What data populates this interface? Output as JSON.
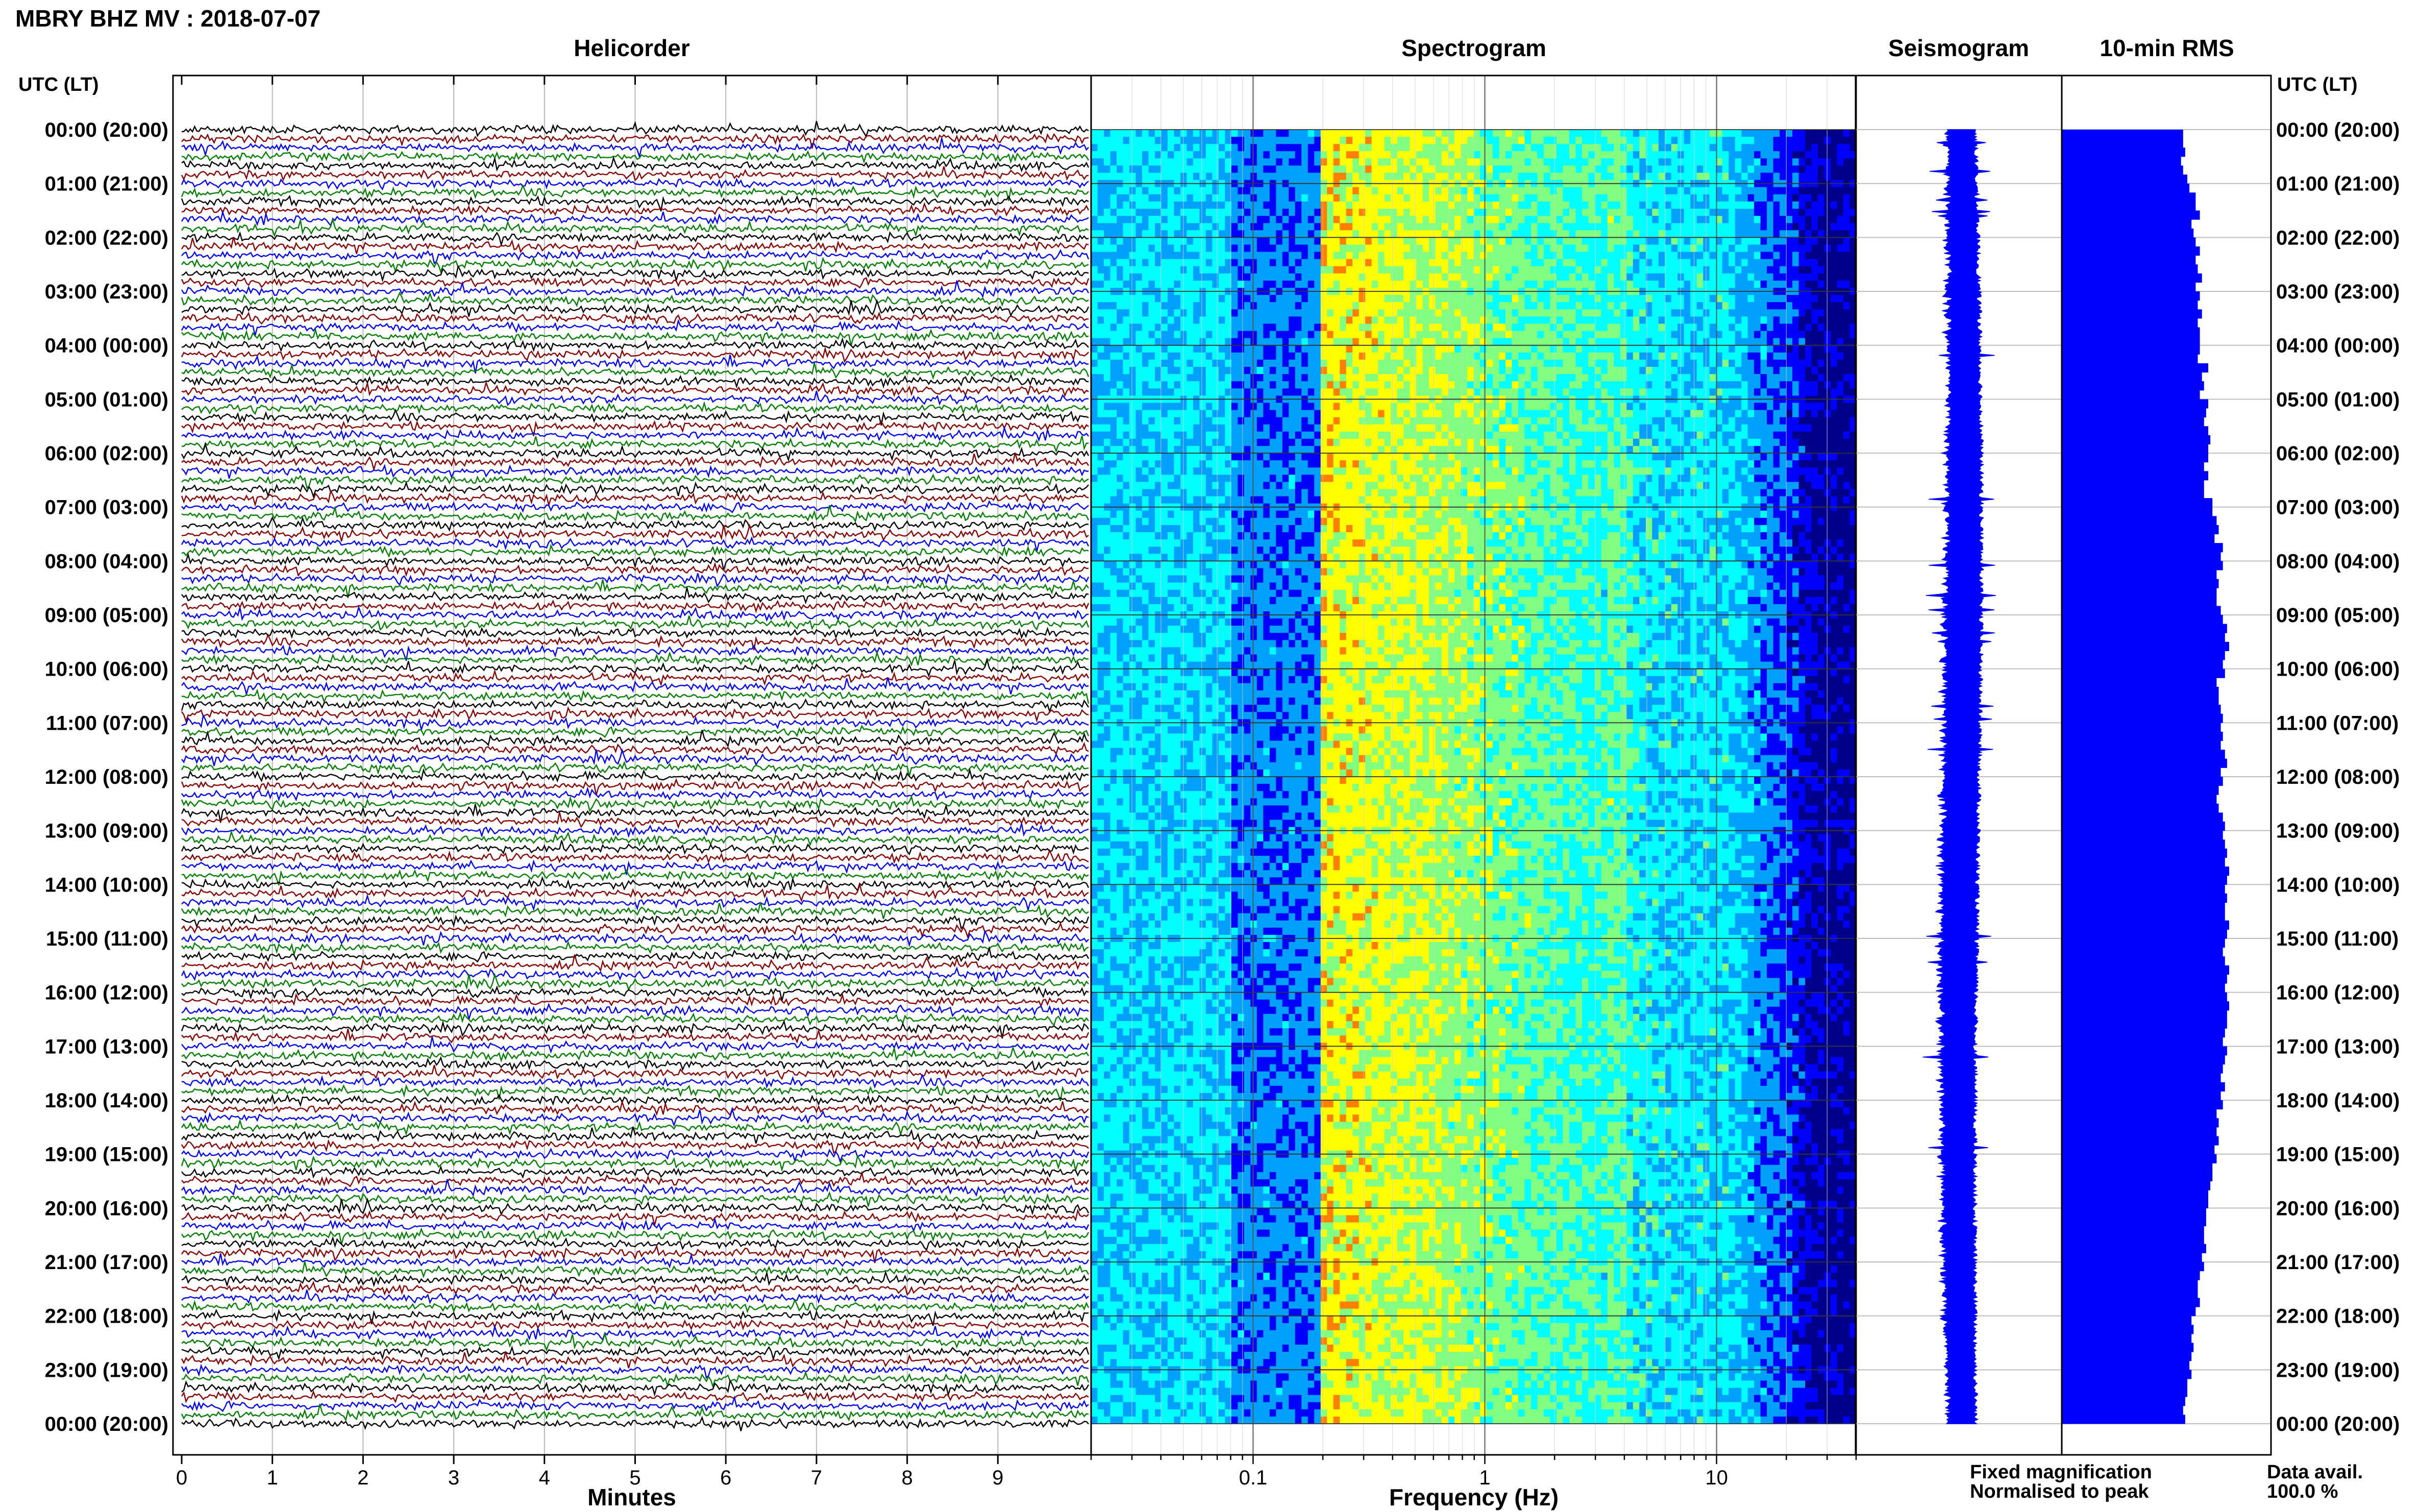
{
  "header": {
    "station_title": "MBRY BHZ MV : 2018-07-07",
    "utc_left": "UTC (LT)",
    "utc_right": "UTC (LT)"
  },
  "panels": {
    "helicorder": "Helicorder",
    "spectrogram": "Spectrogram",
    "seismogram": "Seismogram",
    "rms": "10-min RMS"
  },
  "chart_data": {
    "type": "helicorder",
    "time_labels": [
      "00:00 (20:00)",
      "01:00 (21:00)",
      "02:00 (22:00)",
      "03:00 (23:00)",
      "04:00 (00:00)",
      "05:00 (01:00)",
      "06:00 (02:00)",
      "07:00 (03:00)",
      "08:00 (04:00)",
      "09:00 (05:00)",
      "10:00 (06:00)",
      "11:00 (07:00)",
      "12:00 (08:00)",
      "13:00 (09:00)",
      "14:00 (10:00)",
      "15:00 (11:00)",
      "16:00 (12:00)",
      "17:00 (13:00)",
      "18:00 (14:00)",
      "19:00 (15:00)",
      "20:00 (16:00)",
      "21:00 (17:00)",
      "22:00 (18:00)",
      "23:00 (19:00)",
      "00:00 (20:00)"
    ],
    "helicorder": {
      "xlabel": "Minutes",
      "xticks": [
        0,
        1,
        2,
        3,
        4,
        5,
        6,
        7,
        8,
        9
      ],
      "xlim": [
        0,
        10
      ],
      "traces_per_hour": 6,
      "trace_colors": [
        "#000000",
        "#8b0000",
        "#0000ff",
        "#008000"
      ]
    },
    "spectrogram": {
      "xlabel": "Frequency (Hz)",
      "xscale": "log",
      "xlim": [
        0.02,
        40
      ],
      "xticks": [
        {
          "v": 0.1,
          "label": "0.1"
        },
        {
          "v": 1,
          "label": "1"
        },
        {
          "v": 10,
          "label": "10"
        }
      ],
      "colormap": [
        "#00008b",
        "#0000ff",
        "#00a0ff",
        "#00ffff",
        "#80ff80",
        "#ffff00",
        "#ff8000",
        "#ff0000"
      ]
    },
    "seismogram": {
      "color": "#0000ff"
    },
    "rms": {
      "color": "#0000ff",
      "xlim": [
        0,
        1
      ],
      "values": [
        0.58,
        0.58,
        0.59,
        0.57,
        0.58,
        0.6,
        0.61,
        0.64,
        0.64,
        0.66,
        0.62,
        0.63,
        0.64,
        0.66,
        0.64,
        0.65,
        0.67,
        0.64,
        0.66,
        0.65,
        0.67,
        0.65,
        0.66,
        0.66,
        0.66,
        0.65,
        0.7,
        0.67,
        0.68,
        0.66,
        0.7,
        0.69,
        0.68,
        0.7,
        0.71,
        0.7,
        0.7,
        0.68,
        0.7,
        0.68,
        0.68,
        0.72,
        0.72,
        0.74,
        0.75,
        0.73,
        0.77,
        0.76,
        0.77,
        0.74,
        0.75,
        0.74,
        0.74,
        0.76,
        0.77,
        0.79,
        0.78,
        0.8,
        0.78,
        0.77,
        0.78,
        0.74,
        0.75,
        0.75,
        0.76,
        0.77,
        0.76,
        0.77,
        0.76,
        0.78,
        0.79,
        0.76,
        0.77,
        0.75,
        0.74,
        0.75,
        0.77,
        0.78,
        0.77,
        0.78,
        0.79,
        0.78,
        0.8,
        0.79,
        0.78,
        0.79,
        0.78,
        0.78,
        0.8,
        0.79,
        0.78,
        0.77,
        0.78,
        0.8,
        0.79,
        0.78,
        0.79,
        0.8,
        0.79,
        0.79,
        0.78,
        0.77,
        0.79,
        0.78,
        0.77,
        0.76,
        0.78,
        0.76,
        0.77,
        0.74,
        0.75,
        0.74,
        0.75,
        0.73,
        0.74,
        0.72,
        0.72,
        0.71,
        0.7,
        0.7,
        0.69,
        0.69,
        0.68,
        0.68,
        0.69,
        0.67,
        0.68,
        0.66,
        0.65,
        0.65,
        0.66,
        0.64,
        0.62,
        0.63,
        0.62,
        0.63,
        0.62,
        0.61,
        0.62,
        0.6,
        0.6,
        0.59,
        0.58,
        0.59
      ]
    }
  },
  "footer": {
    "fixed": "Fixed magnification",
    "normalised": "Normalised to peak",
    "data_avail": "Data avail.",
    "data_avail_pct": "100.0 %",
    "fixed_color": "#0000ff",
    "normalised_color": "#ff0000"
  }
}
